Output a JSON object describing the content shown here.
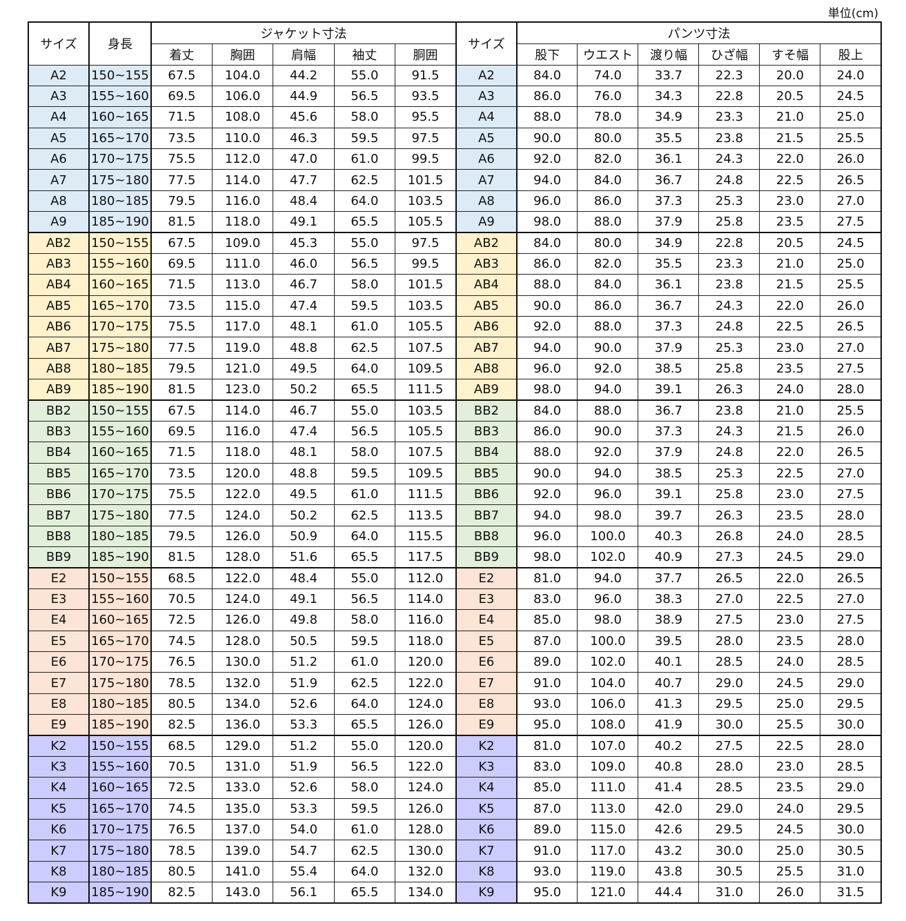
{
  "unit": "単位(cm)",
  "header": {
    "size": "サイズ",
    "height": "身長",
    "jacket": "ジャケット寸法",
    "jacket_cols": [
      "着丈",
      "胸囲",
      "肩幅",
      "袖丈",
      "胴囲"
    ],
    "size2": "サイズ",
    "pants": "パンツ寸法",
    "pants_cols": [
      "股下",
      "ウエスト",
      "渡り幅",
      "ひざ幅",
      "すそ幅",
      "股上"
    ]
  },
  "table": {
    "groups": [
      {
        "color": "#ddebf7",
        "rows": [
          [
            "A2",
            "150~155",
            "67.5",
            "104.0",
            "44.2",
            "55.0",
            "91.5",
            "A2",
            "84.0",
            "74.0",
            "33.7",
            "22.3",
            "20.0",
            "24.0"
          ],
          [
            "A3",
            "155~160",
            "69.5",
            "106.0",
            "44.9",
            "56.5",
            "93.5",
            "A3",
            "86.0",
            "76.0",
            "34.3",
            "22.8",
            "20.5",
            "24.5"
          ],
          [
            "A4",
            "160~165",
            "71.5",
            "108.0",
            "45.6",
            "58.0",
            "95.5",
            "A4",
            "88.0",
            "78.0",
            "34.9",
            "23.3",
            "21.0",
            "25.0"
          ],
          [
            "A5",
            "165~170",
            "73.5",
            "110.0",
            "46.3",
            "59.5",
            "97.5",
            "A5",
            "90.0",
            "80.0",
            "35.5",
            "23.8",
            "21.5",
            "25.5"
          ],
          [
            "A6",
            "170~175",
            "75.5",
            "112.0",
            "47.0",
            "61.0",
            "99.5",
            "A6",
            "92.0",
            "82.0",
            "36.1",
            "24.3",
            "22.0",
            "26.0"
          ],
          [
            "A7",
            "175~180",
            "77.5",
            "114.0",
            "47.7",
            "62.5",
            "101.5",
            "A7",
            "94.0",
            "84.0",
            "36.7",
            "24.8",
            "22.5",
            "26.5"
          ],
          [
            "A8",
            "180~185",
            "79.5",
            "116.0",
            "48.4",
            "64.0",
            "103.5",
            "A8",
            "96.0",
            "86.0",
            "37.3",
            "25.3",
            "23.0",
            "27.0"
          ],
          [
            "A9",
            "185~190",
            "81.5",
            "118.0",
            "49.1",
            "65.5",
            "105.5",
            "A9",
            "98.0",
            "88.0",
            "37.9",
            "25.8",
            "23.5",
            "27.5"
          ]
        ]
      },
      {
        "color": "#fff2cc",
        "rows": [
          [
            "AB2",
            "150~155",
            "67.5",
            "109.0",
            "45.3",
            "55.0",
            "97.5",
            "AB2",
            "84.0",
            "80.0",
            "34.9",
            "22.8",
            "20.5",
            "24.5"
          ],
          [
            "AB3",
            "155~160",
            "69.5",
            "111.0",
            "46.0",
            "56.5",
            "99.5",
            "AB3",
            "86.0",
            "82.0",
            "35.5",
            "23.3",
            "21.0",
            "25.0"
          ],
          [
            "AB4",
            "160~165",
            "71.5",
            "113.0",
            "46.7",
            "58.0",
            "101.5",
            "AB4",
            "88.0",
            "84.0",
            "36.1",
            "23.8",
            "21.5",
            "25.5"
          ],
          [
            "AB5",
            "165~170",
            "73.5",
            "115.0",
            "47.4",
            "59.5",
            "103.5",
            "AB5",
            "90.0",
            "86.0",
            "36.7",
            "24.3",
            "22.0",
            "26.0"
          ],
          [
            "AB6",
            "170~175",
            "75.5",
            "117.0",
            "48.1",
            "61.0",
            "105.5",
            "AB6",
            "92.0",
            "88.0",
            "37.3",
            "24.8",
            "22.5",
            "26.5"
          ],
          [
            "AB7",
            "175~180",
            "77.5",
            "119.0",
            "48.8",
            "62.5",
            "107.5",
            "AB7",
            "94.0",
            "90.0",
            "37.9",
            "25.3",
            "23.0",
            "27.0"
          ],
          [
            "AB8",
            "180~185",
            "79.5",
            "121.0",
            "49.5",
            "64.0",
            "109.5",
            "AB8",
            "96.0",
            "92.0",
            "38.5",
            "25.8",
            "23.5",
            "27.5"
          ],
          [
            "AB9",
            "185~190",
            "81.5",
            "123.0",
            "50.2",
            "65.5",
            "111.5",
            "AB9",
            "98.0",
            "94.0",
            "39.1",
            "26.3",
            "24.0",
            "28.0"
          ]
        ]
      },
      {
        "color": "#e2efda",
        "rows": [
          [
            "BB2",
            "150~155",
            "67.5",
            "114.0",
            "46.7",
            "55.0",
            "103.5",
            "BB2",
            "84.0",
            "88.0",
            "36.7",
            "23.8",
            "21.0",
            "25.5"
          ],
          [
            "BB3",
            "155~160",
            "69.5",
            "116.0",
            "47.4",
            "56.5",
            "105.5",
            "BB3",
            "86.0",
            "90.0",
            "37.3",
            "24.3",
            "21.5",
            "26.0"
          ],
          [
            "BB4",
            "160~165",
            "71.5",
            "118.0",
            "48.1",
            "58.0",
            "107.5",
            "BB4",
            "88.0",
            "92.0",
            "37.9",
            "24.8",
            "22.0",
            "26.5"
          ],
          [
            "BB5",
            "165~170",
            "73.5",
            "120.0",
            "48.8",
            "59.5",
            "109.5",
            "BB5",
            "90.0",
            "94.0",
            "38.5",
            "25.3",
            "22.5",
            "27.0"
          ],
          [
            "BB6",
            "170~175",
            "75.5",
            "122.0",
            "49.5",
            "61.0",
            "111.5",
            "BB6",
            "92.0",
            "96.0",
            "39.1",
            "25.8",
            "23.0",
            "27.5"
          ],
          [
            "BB7",
            "175~180",
            "77.5",
            "124.0",
            "50.2",
            "62.5",
            "113.5",
            "BB7",
            "94.0",
            "98.0",
            "39.7",
            "26.3",
            "23.5",
            "28.0"
          ],
          [
            "BB8",
            "180~185",
            "79.5",
            "126.0",
            "50.9",
            "64.0",
            "115.5",
            "BB8",
            "96.0",
            "100.0",
            "40.3",
            "26.8",
            "24.0",
            "28.5"
          ],
          [
            "BB9",
            "185~190",
            "81.5",
            "128.0",
            "51.6",
            "65.5",
            "117.5",
            "BB9",
            "98.0",
            "102.0",
            "40.9",
            "27.3",
            "24.5",
            "29.0"
          ]
        ]
      },
      {
        "color": "#fce4d6",
        "rows": [
          [
            "E2",
            "150~155",
            "68.5",
            "122.0",
            "48.4",
            "55.0",
            "112.0",
            "E2",
            "81.0",
            "94.0",
            "37.7",
            "26.5",
            "22.0",
            "26.5"
          ],
          [
            "E3",
            "155~160",
            "70.5",
            "124.0",
            "49.1",
            "56.5",
            "114.0",
            "E3",
            "83.0",
            "96.0",
            "38.3",
            "27.0",
            "22.5",
            "27.0"
          ],
          [
            "E4",
            "160~165",
            "72.5",
            "126.0",
            "49.8",
            "58.0",
            "116.0",
            "E4",
            "85.0",
            "98.0",
            "38.9",
            "27.5",
            "23.0",
            "27.5"
          ],
          [
            "E5",
            "165~170",
            "74.5",
            "128.0",
            "50.5",
            "59.5",
            "118.0",
            "E5",
            "87.0",
            "100.0",
            "39.5",
            "28.0",
            "23.5",
            "28.0"
          ],
          [
            "E6",
            "170~175",
            "76.5",
            "130.0",
            "51.2",
            "61.0",
            "120.0",
            "E6",
            "89.0",
            "102.0",
            "40.1",
            "28.5",
            "24.0",
            "28.5"
          ],
          [
            "E7",
            "175~180",
            "78.5",
            "132.0",
            "51.9",
            "62.5",
            "122.0",
            "E7",
            "91.0",
            "104.0",
            "40.7",
            "29.0",
            "24.5",
            "29.0"
          ],
          [
            "E8",
            "180~185",
            "80.5",
            "134.0",
            "52.6",
            "64.0",
            "124.0",
            "E8",
            "93.0",
            "106.0",
            "41.3",
            "29.5",
            "25.0",
            "29.5"
          ],
          [
            "E9",
            "185~190",
            "82.5",
            "136.0",
            "53.3",
            "65.5",
            "126.0",
            "E9",
            "95.0",
            "108.0",
            "41.9",
            "30.0",
            "25.5",
            "30.0"
          ]
        ]
      },
      {
        "color": "#ccccff",
        "rows": [
          [
            "K2",
            "150~155",
            "68.5",
            "129.0",
            "51.2",
            "55.0",
            "120.0",
            "K2",
            "81.0",
            "107.0",
            "40.2",
            "27.5",
            "22.5",
            "28.0"
          ],
          [
            "K3",
            "155~160",
            "70.5",
            "131.0",
            "51.9",
            "56.5",
            "122.0",
            "K3",
            "83.0",
            "109.0",
            "40.8",
            "28.0",
            "23.0",
            "28.5"
          ],
          [
            "K4",
            "160~165",
            "72.5",
            "133.0",
            "52.6",
            "58.0",
            "124.0",
            "K4",
            "85.0",
            "111.0",
            "41.4",
            "28.5",
            "23.5",
            "29.0"
          ],
          [
            "K5",
            "165~170",
            "74.5",
            "135.0",
            "53.3",
            "59.5",
            "126.0",
            "K5",
            "87.0",
            "113.0",
            "42.0",
            "29.0",
            "24.0",
            "29.5"
          ],
          [
            "K6",
            "170~175",
            "76.5",
            "137.0",
            "54.0",
            "61.0",
            "128.0",
            "K6",
            "89.0",
            "115.0",
            "42.6",
            "29.5",
            "24.5",
            "30.0"
          ],
          [
            "K7",
            "175~180",
            "78.5",
            "139.0",
            "54.7",
            "62.5",
            "130.0",
            "K7",
            "91.0",
            "117.0",
            "43.2",
            "30.0",
            "25.0",
            "30.5"
          ],
          [
            "K8",
            "180~185",
            "80.5",
            "141.0",
            "55.4",
            "64.0",
            "132.0",
            "K8",
            "93.0",
            "119.0",
            "43.8",
            "30.5",
            "25.5",
            "31.0"
          ],
          [
            "K9",
            "185~190",
            "82.5",
            "143.0",
            "56.1",
            "65.5",
            "134.0",
            "K9",
            "95.0",
            "121.0",
            "44.4",
            "31.0",
            "26.0",
            "31.5"
          ]
        ]
      }
    ]
  }
}
